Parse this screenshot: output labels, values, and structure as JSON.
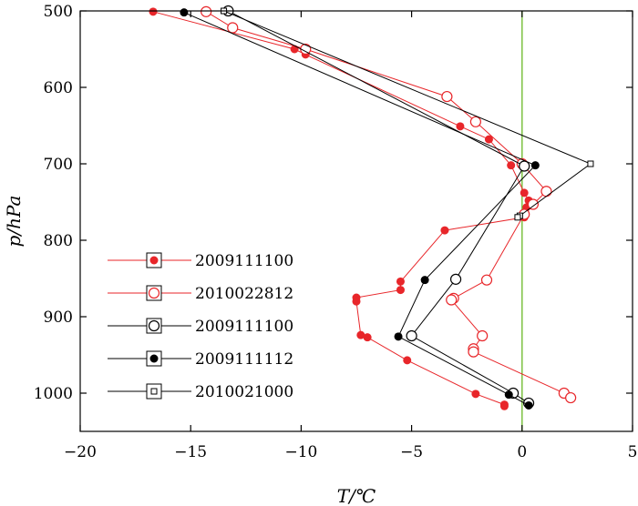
{
  "chart_data": {
    "type": "line",
    "xlabel": "T/℃",
    "ylabel": "p/hPa",
    "xlim": [
      -20,
      5
    ],
    "ylim": [
      1050,
      500
    ],
    "y_inverted": true,
    "xticks": [
      "−20",
      "−15",
      "−10",
      "−5",
      "0",
      "5"
    ],
    "yticks": [
      "500",
      "600",
      "700",
      "800",
      "900",
      "1000"
    ],
    "reference_line": {
      "x": 0,
      "color": "#7cc142"
    },
    "legend": {
      "position": "bottom-left"
    },
    "colors": {
      "red": "#e8262a",
      "black": "#000000"
    },
    "series": [
      {
        "name": "2009111100",
        "color": "#e8262a",
        "marker": "filled-dot",
        "points": [
          [
            -16.7,
            501
          ],
          [
            -10.3,
            550
          ],
          [
            -9.8,
            557
          ],
          [
            -2.8,
            651
          ],
          [
            -1.5,
            668
          ],
          [
            -0.5,
            702
          ],
          [
            0.1,
            738
          ],
          [
            0.3,
            748
          ],
          [
            0.2,
            757
          ],
          [
            0.1,
            770
          ],
          [
            -3.5,
            787
          ],
          [
            -5.5,
            854
          ],
          [
            -5.5,
            865
          ],
          [
            -7.5,
            875
          ],
          [
            -7.5,
            880
          ],
          [
            -7.3,
            924
          ],
          [
            -7.0,
            927
          ],
          [
            -5.2,
            957
          ],
          [
            -2.1,
            1001
          ],
          [
            -0.8,
            1015
          ],
          [
            -0.8,
            1017
          ]
        ]
      },
      {
        "name": "2010022812",
        "color": "#e8262a",
        "marker": "open-circle",
        "points": [
          [
            -14.3,
            501
          ],
          [
            -13.1,
            522
          ],
          [
            -9.8,
            550
          ],
          [
            -3.4,
            612
          ],
          [
            -2.1,
            645
          ],
          [
            0.0,
            700
          ],
          [
            1.1,
            736
          ],
          [
            0.5,
            753
          ],
          [
            0.1,
            766
          ],
          [
            -1.6,
            852
          ],
          [
            -3.1,
            876
          ],
          [
            -3.2,
            878
          ],
          [
            -1.8,
            925
          ],
          [
            -2.2,
            942
          ],
          [
            -2.2,
            946
          ],
          [
            1.9,
            1000
          ],
          [
            2.2,
            1006
          ]
        ]
      },
      {
        "name": "2009111100",
        "color": "#000000",
        "marker": "open-circle",
        "points": [
          [
            -13.3,
            500
          ],
          [
            0.1,
            703
          ],
          [
            -3.0,
            851
          ],
          [
            -5.0,
            925
          ],
          [
            -0.4,
            1000
          ],
          [
            0.3,
            1013
          ]
        ]
      },
      {
        "name": "2009111112",
        "color": "#000000",
        "marker": "filled-dot",
        "points": [
          [
            -15.3,
            502
          ],
          [
            0.6,
            702
          ],
          [
            -4.4,
            852
          ],
          [
            -5.6,
            926
          ],
          [
            -0.6,
            1002
          ],
          [
            0.3,
            1016
          ]
        ]
      },
      {
        "name": "2010021000",
        "color": "#000000",
        "marker": "open-square",
        "points": [
          [
            -13.5,
            500
          ],
          [
            3.1,
            700
          ],
          [
            -0.1,
            768
          ],
          [
            -0.2,
            770
          ]
        ]
      }
    ]
  }
}
